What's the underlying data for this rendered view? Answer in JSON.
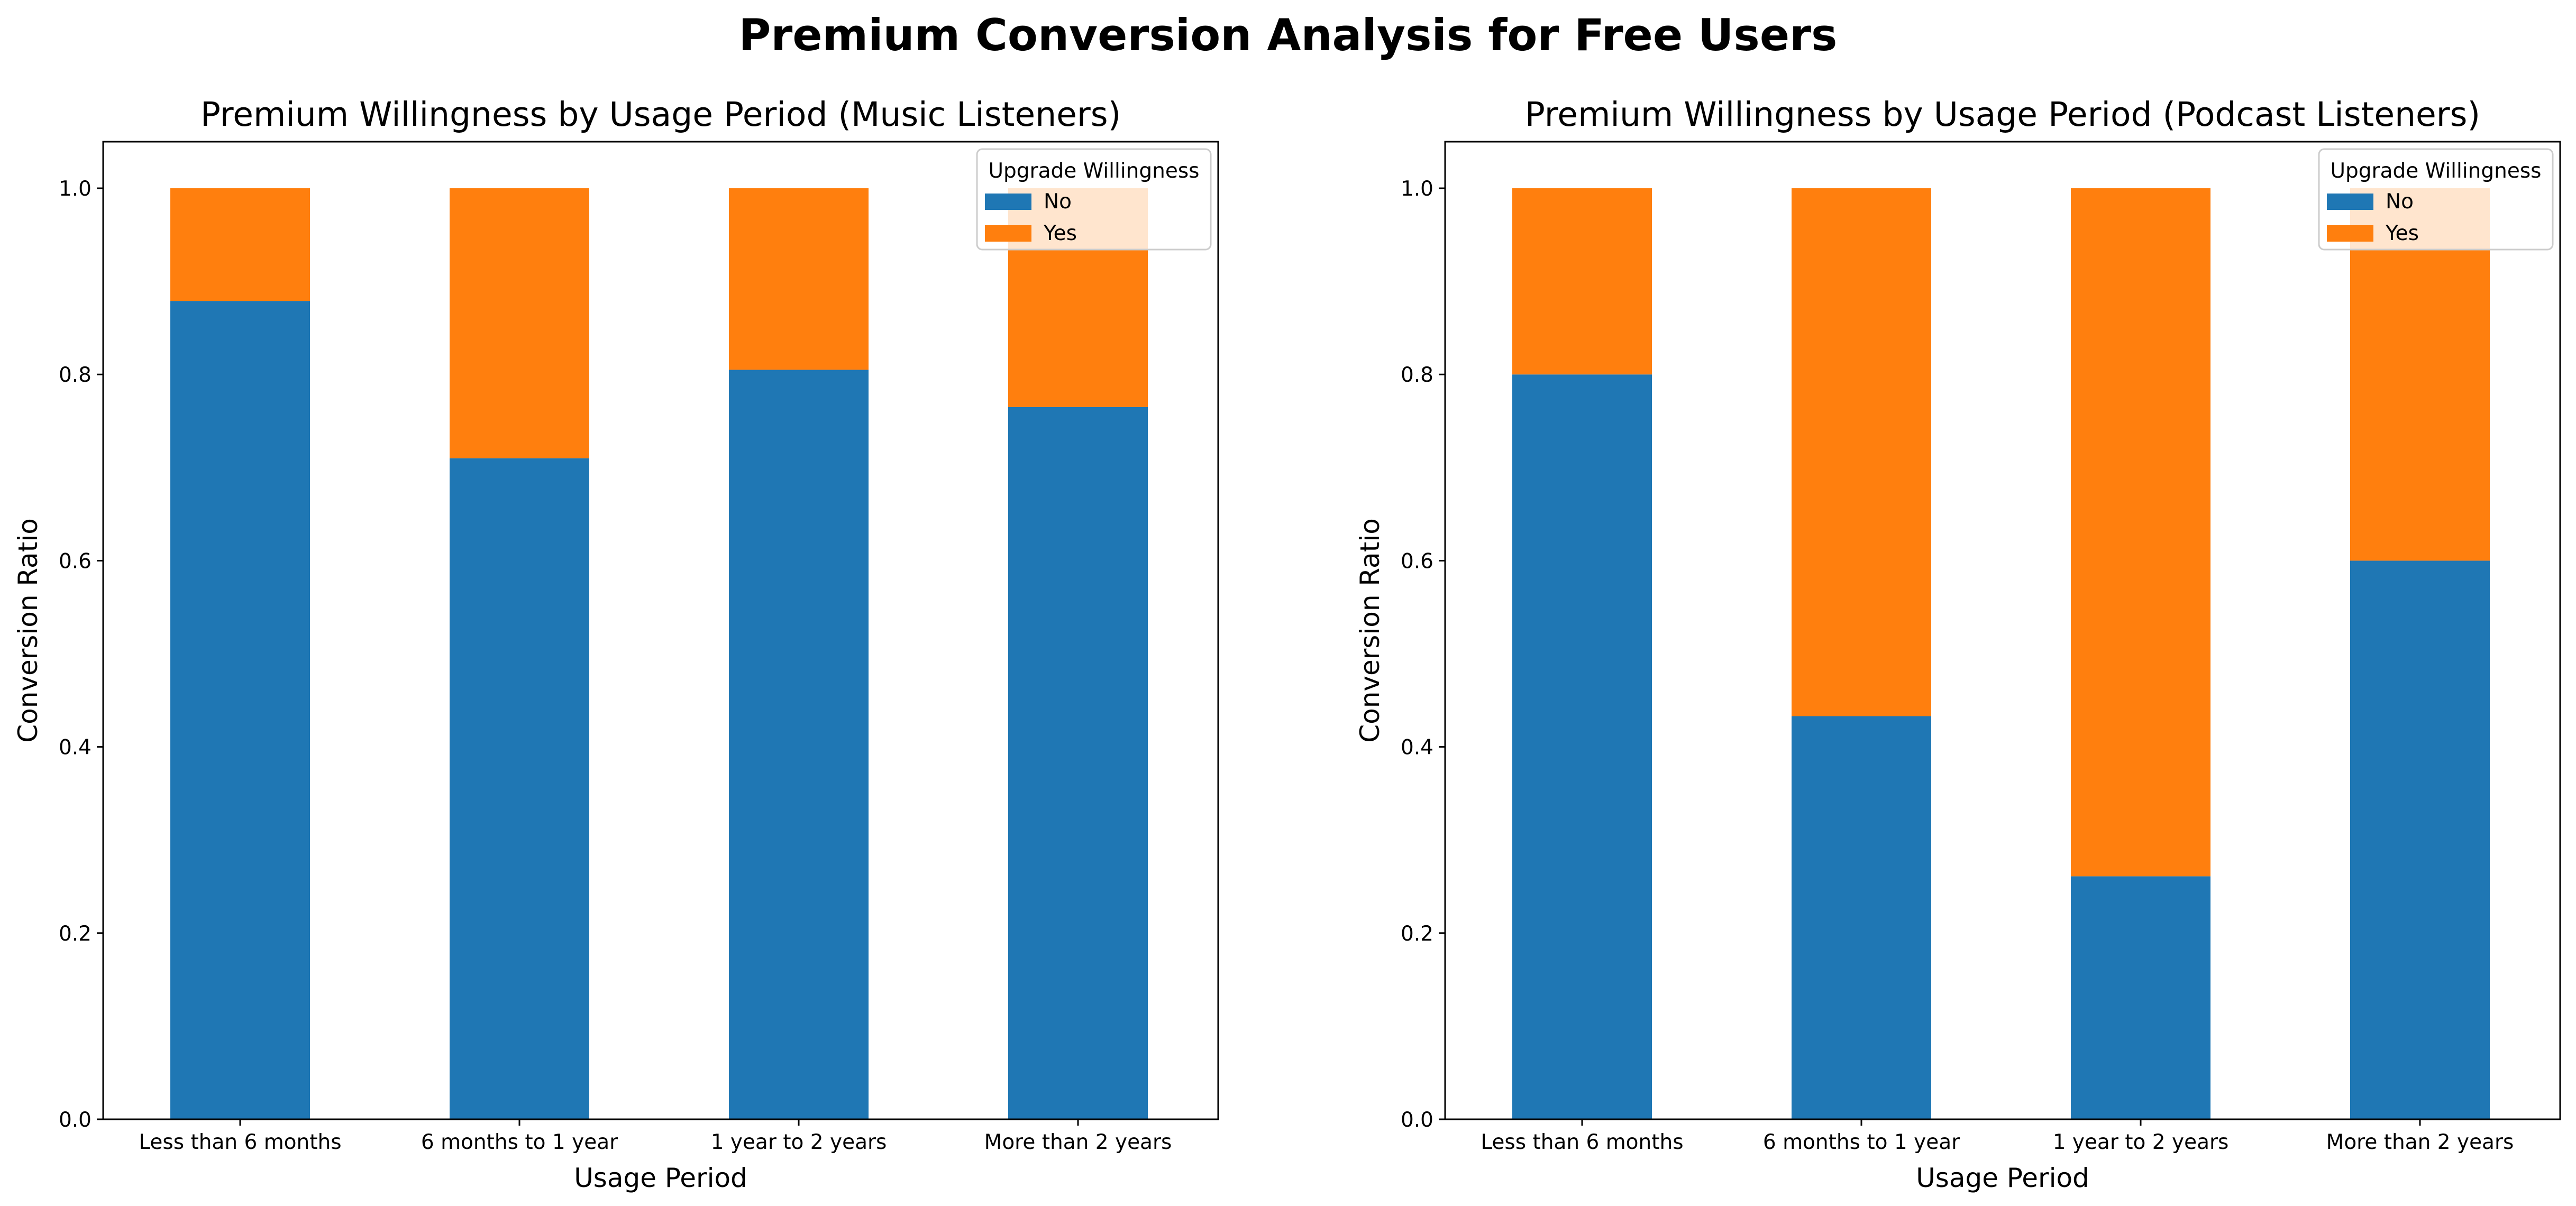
{
  "figure": {
    "suptitle": "Premium Conversion Analysis for Free Users"
  },
  "chart_data": [
    {
      "type": "bar",
      "stacked": true,
      "title": "Premium Willingness by Usage Period (Music Listeners)",
      "xlabel": "Usage Period",
      "ylabel": "Conversion Ratio",
      "ylim": [
        0,
        1.05
      ],
      "yticks": [
        "0.0",
        "0.2",
        "0.4",
        "0.6",
        "0.8",
        "1.0"
      ],
      "categories": [
        "Less than 6 months",
        "6 months to 1 year",
        "1 year to 2 years",
        "More than 2 years"
      ],
      "legend": {
        "title": "Upgrade Willingness",
        "position": "upper right"
      },
      "series": [
        {
          "name": "No",
          "color": "#1f77b4",
          "values": [
            0.879,
            0.71,
            0.805,
            0.765
          ]
        },
        {
          "name": "Yes",
          "color": "#ff7f0e",
          "values": [
            0.121,
            0.29,
            0.195,
            0.235
          ]
        }
      ],
      "grid": false
    },
    {
      "type": "bar",
      "stacked": true,
      "title": "Premium Willingness by Usage Period (Podcast Listeners)",
      "xlabel": "Usage Period",
      "ylabel": "Conversion Ratio",
      "ylim": [
        0,
        1.05
      ],
      "yticks": [
        "0.0",
        "0.2",
        "0.4",
        "0.6",
        "0.8",
        "1.0"
      ],
      "categories": [
        "Less than 6 months",
        "6 months to 1 year",
        "1 year to 2 years",
        "More than 2 years"
      ],
      "legend": {
        "title": "Upgrade Willingness",
        "position": "upper right"
      },
      "series": [
        {
          "name": "No",
          "color": "#1f77b4",
          "values": [
            0.8,
            0.433,
            0.261,
            0.6
          ]
        },
        {
          "name": "Yes",
          "color": "#ff7f0e",
          "values": [
            0.2,
            0.567,
            0.739,
            0.4
          ]
        }
      ],
      "grid": false
    }
  ]
}
